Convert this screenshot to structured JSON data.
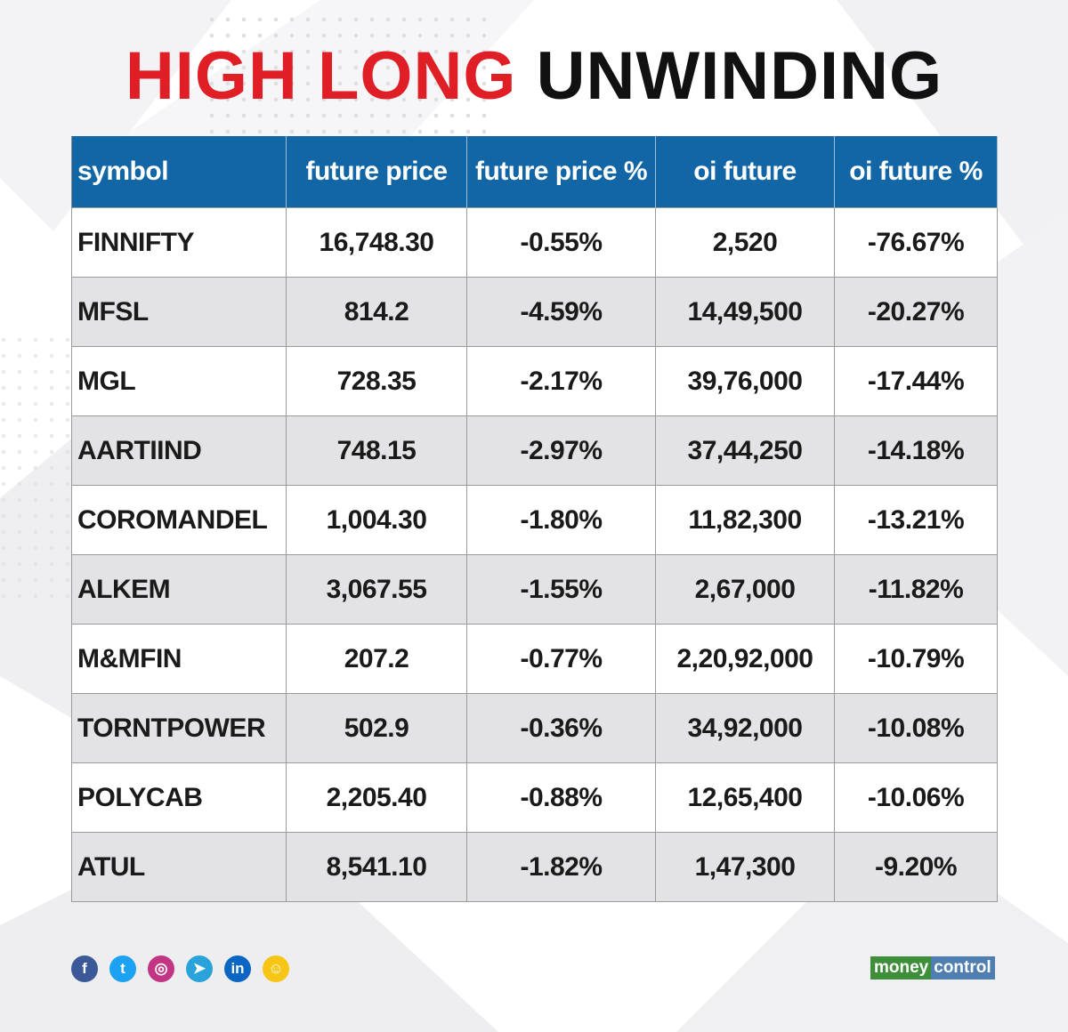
{
  "title": {
    "part1": "HIGH LONG",
    "part2": "UNWINDING"
  },
  "colors": {
    "title_red": "#e01e26",
    "header_blue": "#1366a6",
    "row_alt": "#e3e3e6",
    "facebook": "#3b5998",
    "twitter": "#1da1f2",
    "instagram": "#c13584",
    "telegram": "#2aa3db",
    "linkedin": "#0a66c2",
    "koo": "#f6c515"
  },
  "chart_data": {
    "type": "table",
    "title": "HIGH LONG UNWINDING",
    "columns": [
      "symbol",
      "future price",
      "future price %",
      "oi future",
      "oi future %"
    ],
    "rows": [
      [
        "FINNIFTY",
        "16,748.30",
        "-0.55%",
        "2,520",
        "-76.67%"
      ],
      [
        "MFSL",
        "814.2",
        "-4.59%",
        "14,49,500",
        "-20.27%"
      ],
      [
        "MGL",
        "728.35",
        "-2.17%",
        "39,76,000",
        "-17.44%"
      ],
      [
        "AARTIIND",
        "748.15",
        "-2.97%",
        "37,44,250",
        "-14.18%"
      ],
      [
        "COROMANDEL",
        "1,004.30",
        "-1.80%",
        "11,82,300",
        "-13.21%"
      ],
      [
        "ALKEM",
        "3,067.55",
        "-1.55%",
        "2,67,000",
        "-11.82%"
      ],
      [
        "M&MFIN",
        "207.2",
        "-0.77%",
        "2,20,92,000",
        "-10.79%"
      ],
      [
        "TORNTPOWER",
        "502.9",
        "-0.36%",
        "34,92,000",
        "-10.08%"
      ],
      [
        "POLYCAB",
        "2,205.40",
        "-0.88%",
        "12,65,400",
        "-10.06%"
      ],
      [
        "ATUL",
        "8,541.10",
        "-1.82%",
        "1,47,300",
        "-9.20%"
      ]
    ]
  },
  "social": [
    {
      "name": "facebook-icon",
      "glyph": "f"
    },
    {
      "name": "twitter-icon",
      "glyph": "t"
    },
    {
      "name": "instagram-icon",
      "glyph": "◎"
    },
    {
      "name": "telegram-icon",
      "glyph": "➤"
    },
    {
      "name": "linkedin-icon",
      "glyph": "in"
    },
    {
      "name": "koo-icon",
      "glyph": "☺"
    }
  ],
  "logo": {
    "part1": "money",
    "part2": "control"
  }
}
